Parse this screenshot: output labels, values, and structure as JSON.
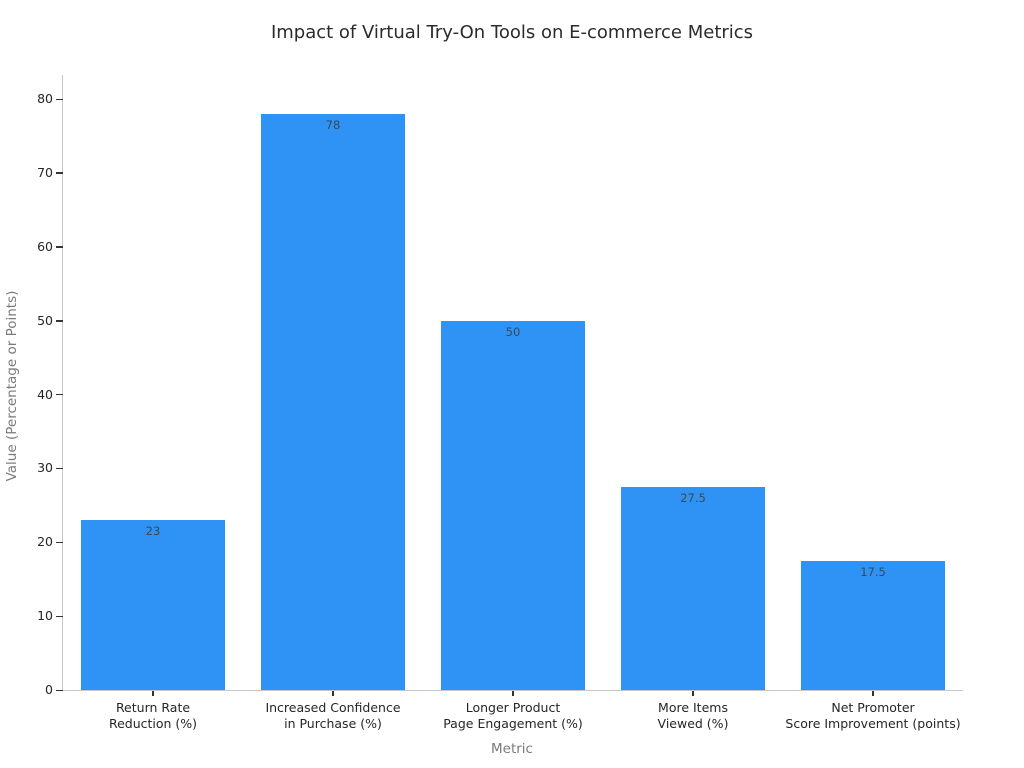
{
  "chart_data": {
    "type": "bar",
    "title": "Impact of Virtual Try-On Tools on E-commerce Metrics",
    "xlabel": "Metric",
    "ylabel": "Value (Percentage or Points)",
    "categories": [
      "Return Rate\nReduction (%)",
      "Increased Confidence\nin Purchase (%)",
      "Longer Product\nPage Engagement (%)",
      "More Items\nViewed (%)",
      "Net Promoter\nScore Improvement (points)"
    ],
    "values": [
      23,
      78,
      50,
      27.5,
      17.5
    ],
    "bar_labels": [
      "23",
      "78",
      "50",
      "27.5",
      "17.5"
    ],
    "yticks": [
      0,
      10,
      20,
      30,
      40,
      50,
      60,
      70,
      80
    ],
    "ylim": [
      0,
      82
    ],
    "grid": false,
    "legend": null,
    "colors": {
      "bar": "#2F93F6",
      "bar_label_text": "#3A4A58",
      "tick_label_text": "#262626",
      "axis_title_text": "#7A7A7A",
      "title_text": "#2B2B2B",
      "spine": "#C6C6C6",
      "tick_mark": "#333333",
      "background": "#FFFFFF"
    }
  }
}
